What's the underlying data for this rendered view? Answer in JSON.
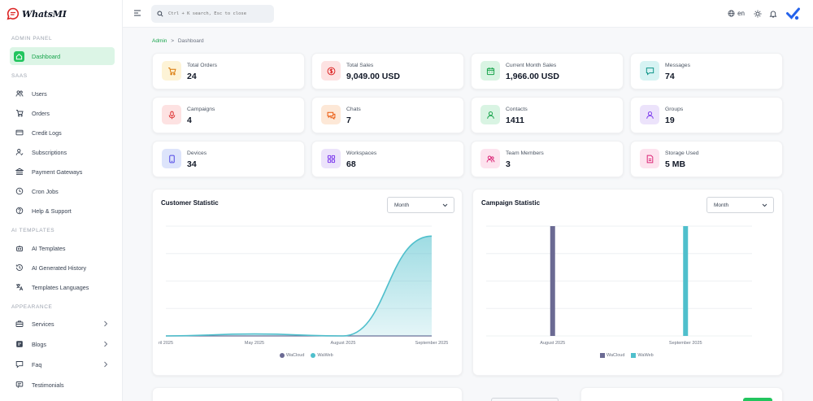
{
  "app": {
    "name": "WhatsMI"
  },
  "sidebar": {
    "sections": [
      "ADMIN PANEL",
      "SAAS",
      "AI TEMPLATES",
      "APPEARANCE"
    ],
    "items": [
      {
        "label": "Dashboard",
        "icon": "home-icon"
      },
      {
        "label": "Users",
        "icon": "users-icon"
      },
      {
        "label": "Orders",
        "icon": "cart-icon"
      },
      {
        "label": "Credit Logs",
        "icon": "credit-card-icon"
      },
      {
        "label": "Subscriptions",
        "icon": "user-subscription-icon"
      },
      {
        "label": "Payment Gateways",
        "icon": "bank-icon"
      },
      {
        "label": "Cron Jobs",
        "icon": "clock-icon"
      },
      {
        "label": "Help & Support",
        "icon": "help-icon"
      },
      {
        "label": "AI Templates",
        "icon": "robot-icon"
      },
      {
        "label": "AI Generated History",
        "icon": "history-icon"
      },
      {
        "label": "Templates Languages",
        "icon": "translate-icon"
      },
      {
        "label": "Services",
        "icon": "briefcase-icon"
      },
      {
        "label": "Blogs",
        "icon": "blog-icon"
      },
      {
        "label": "Faq",
        "icon": "faq-icon"
      },
      {
        "label": "Testimonials",
        "icon": "chat-bubble-icon"
      }
    ]
  },
  "header": {
    "search_placeholder": "Ctrl + K search, Esc to close",
    "language": "en"
  },
  "breadcrumb": {
    "root": "Admin",
    "separator": ">",
    "current": "Dashboard"
  },
  "stats": [
    {
      "label": "Total Orders",
      "value": "24",
      "icon": "cart-icon",
      "bg": "#fdf3d6",
      "fg": "#d97706"
    },
    {
      "label": "Total Sales",
      "value": "9,049.00 USD",
      "icon": "dollar-icon",
      "bg": "#fde2e2",
      "fg": "#dc2626"
    },
    {
      "label": "Current Month Sales",
      "value": "1,966.00 USD",
      "icon": "calendar-icon",
      "bg": "#d9f4e3",
      "fg": "#16a34a"
    },
    {
      "label": "Messages",
      "value": "74",
      "icon": "message-icon",
      "bg": "#d6f3f3",
      "fg": "#0d9488"
    },
    {
      "label": "Campaigns",
      "value": "4",
      "icon": "microphone-icon",
      "bg": "#fde2e2",
      "fg": "#dc2626"
    },
    {
      "label": "Chats",
      "value": "7",
      "icon": "chats-icon",
      "bg": "#fde8d7",
      "fg": "#ea580c"
    },
    {
      "label": "Contacts",
      "value": "1411",
      "icon": "contact-icon",
      "bg": "#d9f4e3",
      "fg": "#16a34a"
    },
    {
      "label": "Groups",
      "value": "19",
      "icon": "group-icon",
      "bg": "#ece3fb",
      "fg": "#7c3aed"
    },
    {
      "label": "Devices",
      "value": "34",
      "icon": "device-icon",
      "bg": "#dde4fb",
      "fg": "#4f46e5"
    },
    {
      "label": "Workspaces",
      "value": "68",
      "icon": "workspace-icon",
      "bg": "#ece3fb",
      "fg": "#7c3aed"
    },
    {
      "label": "Team Members",
      "value": "3",
      "icon": "team-icon",
      "bg": "#fde3ee",
      "fg": "#db2777"
    },
    {
      "label": "Storage Used",
      "value": "5 MB",
      "icon": "storage-icon",
      "bg": "#fde3ee",
      "fg": "#db2777"
    }
  ],
  "customer_statistic": {
    "title": "Customer Statistic",
    "period": "Month"
  },
  "campaign_statistic": {
    "title": "Campaign Statistic",
    "period": "Month"
  },
  "colors": {
    "accent": "#22c55e",
    "wacloud": "#6b6a93",
    "waweb": "#4fbfcc"
  },
  "chart_data": [
    {
      "type": "area",
      "title": "Customer Statistic",
      "categories": [
        "ril 2025",
        "May 2025",
        "August 2025",
        "September 2025"
      ],
      "series": [
        {
          "name": "WaCloud",
          "values": [
            0,
            0,
            0,
            0
          ]
        },
        {
          "name": "WaWeb",
          "values": [
            0,
            2,
            0,
            100
          ]
        }
      ],
      "ylim": [
        0,
        110
      ],
      "grid": true,
      "legend": "bottom"
    },
    {
      "type": "bar",
      "title": "Campaign Statistic",
      "categories": [
        "August 2025",
        "September 2025"
      ],
      "series": [
        {
          "name": "WaCloud",
          "values": [
            100,
            0
          ]
        },
        {
          "name": "WaWeb",
          "values": [
            0,
            100
          ]
        }
      ],
      "ylim": [
        0,
        100
      ],
      "grid": true,
      "legend": "bottom"
    }
  ]
}
